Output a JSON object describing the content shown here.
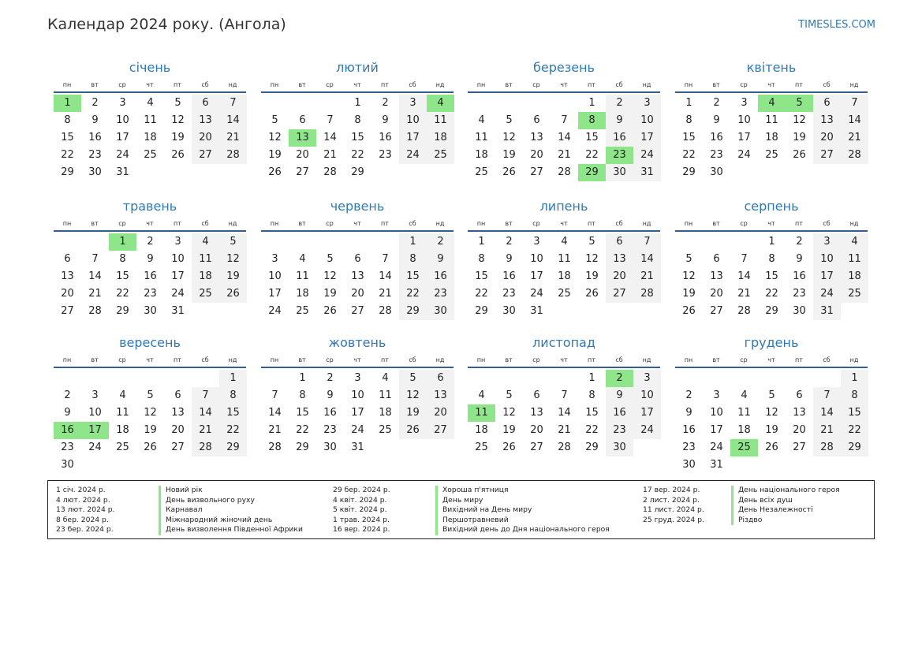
{
  "header": {
    "title": "Календар 2024 року. (Ангола)",
    "site": "TIMESLES.COM"
  },
  "weekdays": [
    "пн",
    "вт",
    "ср",
    "чт",
    "пт",
    "сб",
    "нд"
  ],
  "months": [
    {
      "name": "січень",
      "offset": 0,
      "days": 31,
      "holidays": [
        1
      ]
    },
    {
      "name": "лютий",
      "offset": 3,
      "days": 29,
      "holidays": [
        4,
        13
      ]
    },
    {
      "name": "березень",
      "offset": 4,
      "days": 31,
      "holidays": [
        8,
        23,
        29
      ]
    },
    {
      "name": "квітень",
      "offset": 0,
      "days": 30,
      "holidays": [
        4,
        5
      ]
    },
    {
      "name": "травень",
      "offset": 2,
      "days": 31,
      "holidays": [
        1
      ]
    },
    {
      "name": "червень",
      "offset": 5,
      "days": 30,
      "holidays": []
    },
    {
      "name": "липень",
      "offset": 0,
      "days": 31,
      "holidays": []
    },
    {
      "name": "серпень",
      "offset": 3,
      "days": 31,
      "holidays": []
    },
    {
      "name": "вересень",
      "offset": 6,
      "days": 30,
      "holidays": [
        16,
        17
      ]
    },
    {
      "name": "жовтень",
      "offset": 1,
      "days": 31,
      "holidays": []
    },
    {
      "name": "листопад",
      "offset": 4,
      "days": 30,
      "holidays": [
        2,
        11
      ]
    },
    {
      "name": "грудень",
      "offset": 6,
      "days": 31,
      "holidays": [
        25
      ]
    }
  ],
  "legend": [
    [
      {
        "date": "1 січ. 2024 р.",
        "name": "Новий рік"
      },
      {
        "date": "4 лют. 2024 р.",
        "name": "День визвольного руху"
      },
      {
        "date": "13 лют. 2024 р.",
        "name": "Карнавал"
      },
      {
        "date": "8 бер. 2024 р.",
        "name": "Міжнародний жіночий день"
      },
      {
        "date": "23 бер. 2024 р.",
        "name": "День визволення Південної Африки"
      }
    ],
    [
      {
        "date": "29 бер. 2024 р.",
        "name": "Хороша п'ятниця"
      },
      {
        "date": "4 квіт. 2024 р.",
        "name": "День миру"
      },
      {
        "date": "5 квіт. 2024 р.",
        "name": "Вихідний на День миру"
      },
      {
        "date": "1 трав. 2024 р.",
        "name": "Першотравневий"
      },
      {
        "date": "16 вер. 2024 р.",
        "name": "Вихідний день до Дня національного героя"
      }
    ],
    [
      {
        "date": "17 вер. 2024 р.",
        "name": "День національного героя"
      },
      {
        "date": "2 лист. 2024 р.",
        "name": "День всіх душ"
      },
      {
        "date": "11 лист. 2024 р.",
        "name": "День Незалежності"
      },
      {
        "date": "25 груд. 2024 р.",
        "name": "Різдво"
      }
    ]
  ]
}
